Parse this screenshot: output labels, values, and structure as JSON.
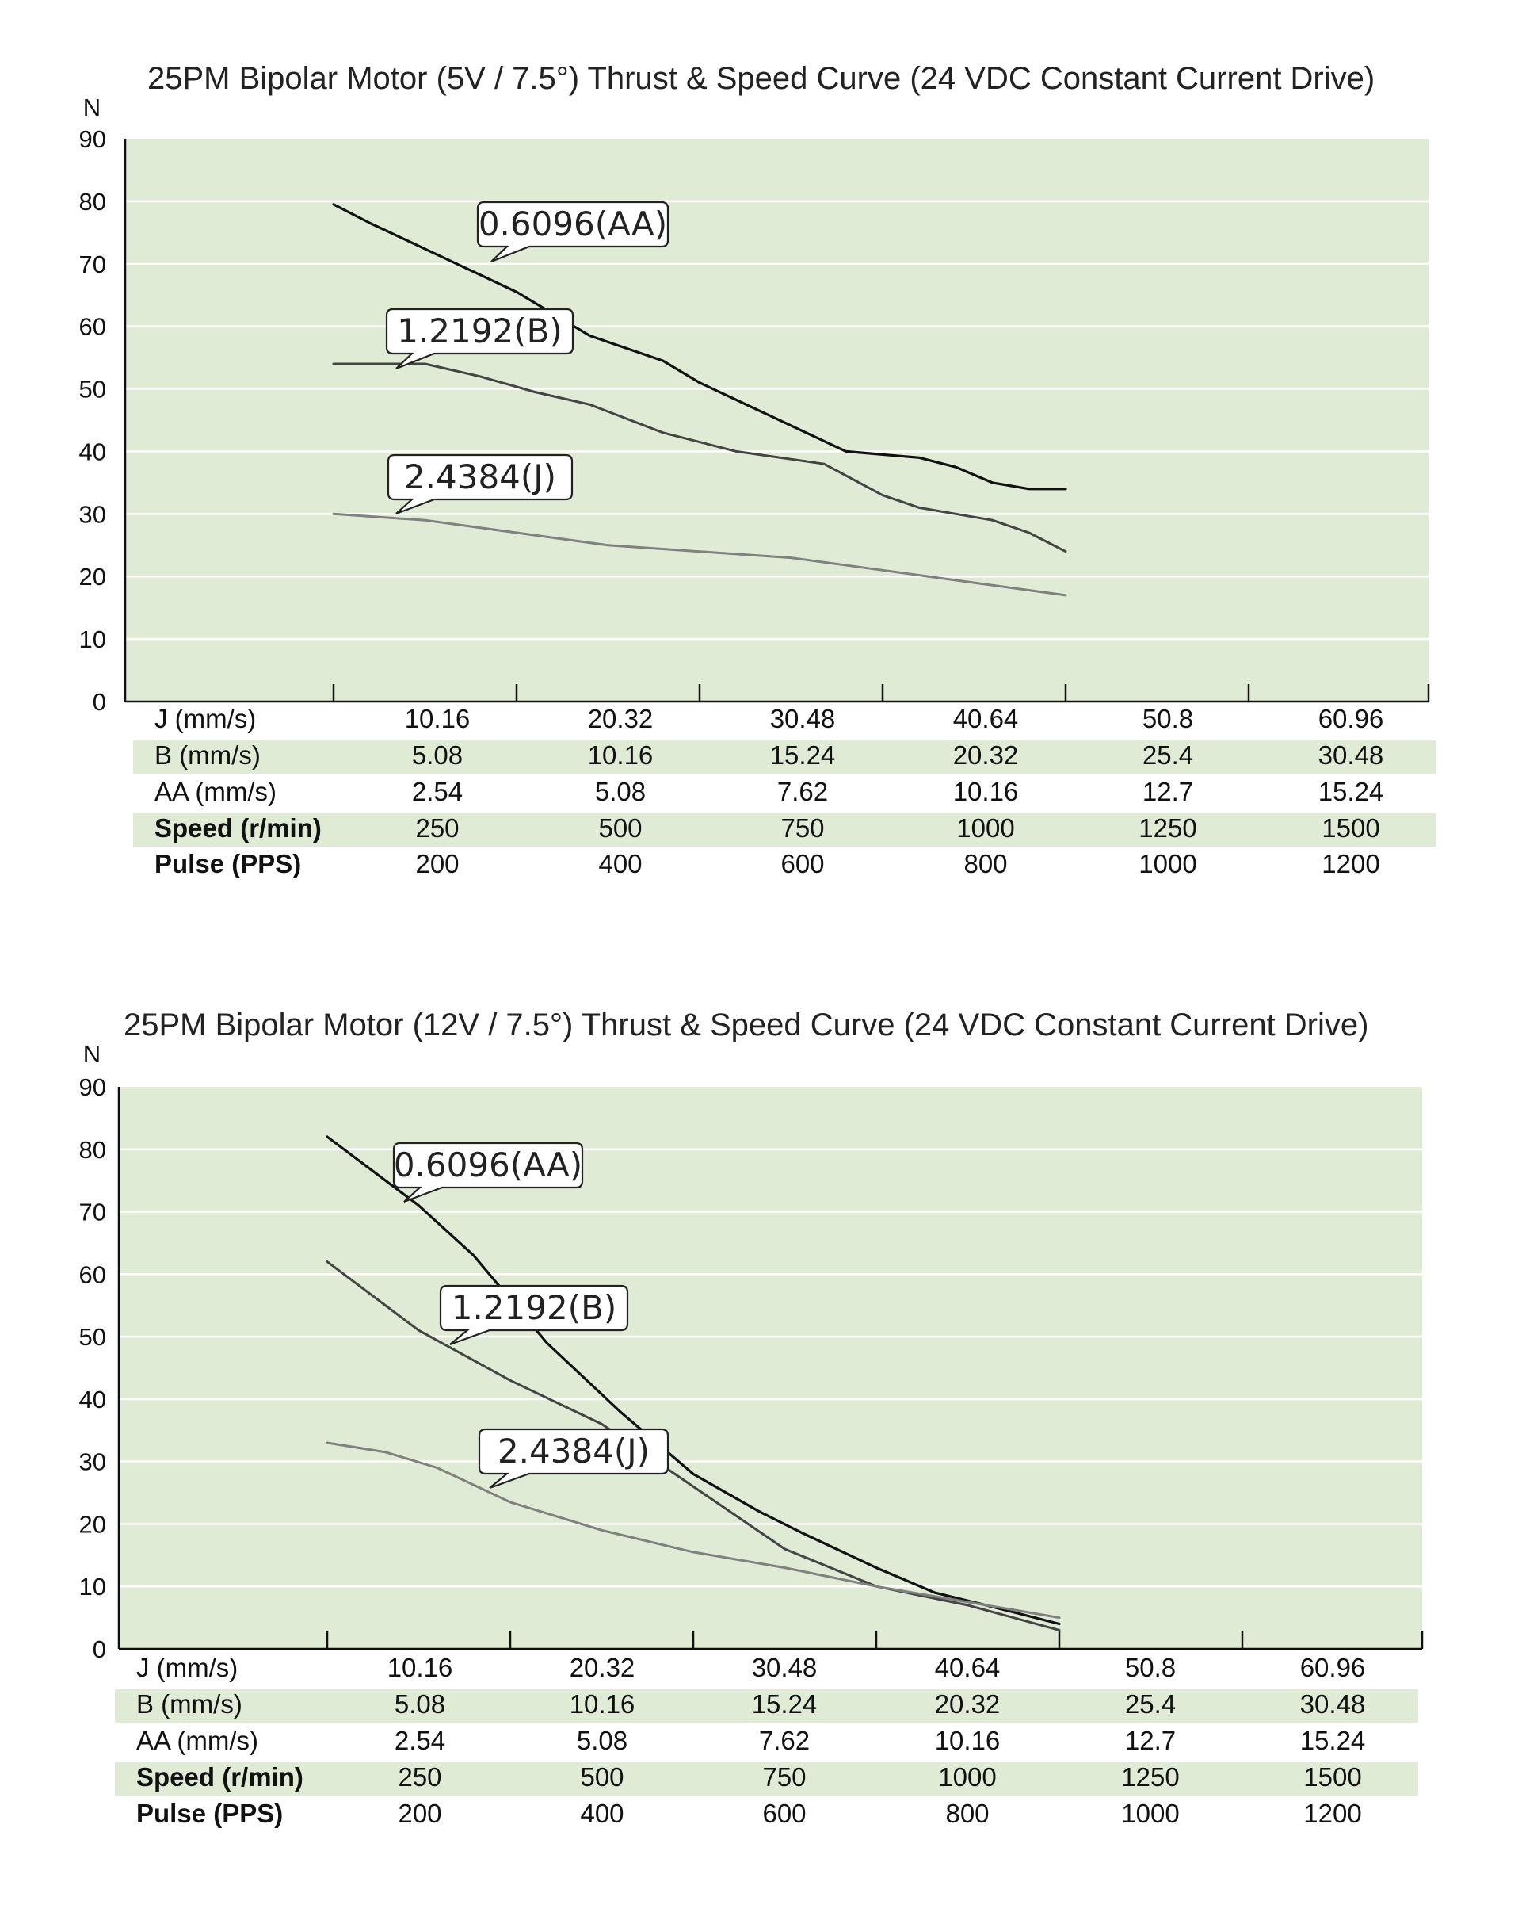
{
  "colors": {
    "plot_bg": "#e0ebd5",
    "band_bg": "#e0ebd5",
    "gridline": "#ffffff",
    "series_AA": "#111111",
    "series_B": "#444444",
    "series_J": "#808080"
  },
  "chart_data": [
    {
      "type": "line",
      "title": "25PM Bipolar Motor (5V / 7.5°) Thrust & Speed Curve (24 VDC Constant Current Drive)",
      "ylabel": "N",
      "ylim": [
        0,
        90
      ],
      "yticks": [
        "90",
        "80",
        "70",
        "60",
        "50",
        "40",
        "30",
        "20",
        "10",
        "0"
      ],
      "x_axis": "Speed (r/min)",
      "xlim": [
        0,
        1500
      ],
      "grid": true,
      "table": [
        {
          "label": "J (mm/s)",
          "values": [
            "10.16",
            "20.32",
            "30.48",
            "40.64",
            "50.8",
            "60.96"
          ],
          "bold": false,
          "shaded": false
        },
        {
          "label": "B (mm/s)",
          "values": [
            "5.08",
            "10.16",
            "15.24",
            "20.32",
            "25.4",
            "30.48"
          ],
          "bold": false,
          "shaded": true
        },
        {
          "label": "AA (mm/s)",
          "values": [
            "2.54",
            "5.08",
            "7.62",
            "10.16",
            "12.7",
            "15.24"
          ],
          "bold": false,
          "shaded": false
        },
        {
          "label": "Speed (r/min)",
          "values": [
            "250",
            "500",
            "750",
            "1000",
            "1250",
            "1500"
          ],
          "bold": true,
          "shaded": true
        },
        {
          "label": "Pulse (PPS)",
          "values": [
            "200",
            "400",
            "600",
            "800",
            "1000",
            "1200"
          ],
          "bold": true,
          "shaded": false
        }
      ],
      "series": [
        {
          "name": "0.6096(AA)",
          "key": "AA",
          "x": [
            250,
            300,
            400,
            500,
            600,
            700,
            750,
            850,
            950,
            1000,
            1050,
            1100,
            1150,
            1200,
            1250
          ],
          "y": [
            79.5,
            76.5,
            71,
            65.5,
            58.5,
            54.5,
            51,
            45.5,
            40,
            39.5,
            39,
            37.5,
            35,
            34,
            34
          ]
        },
        {
          "name": "1.2192(B)",
          "key": "B",
          "x": [
            250,
            300,
            375,
            450,
            525,
            600,
            700,
            800,
            920,
            1000,
            1050,
            1100,
            1150,
            1200,
            1250
          ],
          "y": [
            54,
            54,
            54,
            52,
            49.5,
            47.5,
            43,
            40,
            38,
            33,
            31,
            30,
            29,
            27,
            24
          ]
        },
        {
          "name": "2.4384(J)",
          "key": "J",
          "x": [
            250,
            375,
            500,
            625,
            750,
            875,
            1000,
            1125,
            1250
          ],
          "y": [
            30,
            29,
            27,
            25,
            24,
            23,
            21,
            19,
            17
          ]
        }
      ],
      "callouts": [
        {
          "text": "0.6096(AA)",
          "series": "AA"
        },
        {
          "text": "1.2192(B)",
          "series": "B"
        },
        {
          "text": "2.4384(J)",
          "series": "J"
        }
      ]
    },
    {
      "type": "line",
      "title": "25PM Bipolar Motor (12V / 7.5°) Thrust & Speed Curve (24 VDC Constant Current Drive)",
      "ylabel": "N",
      "ylim": [
        0,
        90
      ],
      "yticks": [
        "90",
        "80",
        "70",
        "60",
        "50",
        "40",
        "30",
        "20",
        "10",
        "0"
      ],
      "x_axis": "Speed (r/min)",
      "xlim": [
        0,
        1500
      ],
      "grid": true,
      "table": [
        {
          "label": "J (mm/s)",
          "values": [
            "10.16",
            "20.32",
            "30.48",
            "40.64",
            "50.8",
            "60.96"
          ],
          "bold": false,
          "shaded": false
        },
        {
          "label": "B (mm/s)",
          "values": [
            "5.08",
            "10.16",
            "15.24",
            "20.32",
            "25.4",
            "30.48"
          ],
          "bold": false,
          "shaded": true
        },
        {
          "label": "AA (mm/s)",
          "values": [
            "2.54",
            "5.08",
            "7.62",
            "10.16",
            "12.7",
            "15.24"
          ],
          "bold": false,
          "shaded": false
        },
        {
          "label": "Speed (r/min)",
          "values": [
            "250",
            "500",
            "750",
            "1000",
            "1250",
            "1500"
          ],
          "bold": true,
          "shaded": true
        },
        {
          "label": "Pulse (PPS)",
          "values": [
            "200",
            "400",
            "600",
            "800",
            "1000",
            "1200"
          ],
          "bold": true,
          "shaded": false
        }
      ],
      "series": [
        {
          "name": "0.6096(AA)",
          "key": "AA",
          "x": [
            250,
            375,
            450,
            550,
            650,
            750,
            840,
            900,
            1000,
            1080,
            1150,
            1250
          ],
          "y": [
            82,
            71,
            63,
            49,
            38,
            28,
            22,
            18.5,
            13,
            9,
            7,
            4
          ]
        },
        {
          "name": "1.2192(B)",
          "key": "B",
          "x": [
            250,
            375,
            500,
            625,
            750,
            875,
            1000,
            1125,
            1250
          ],
          "y": [
            62,
            51,
            43,
            36,
            26,
            16,
            10,
            7,
            3
          ]
        },
        {
          "name": "2.4384(J)",
          "key": "J",
          "x": [
            250,
            330,
            400,
            500,
            625,
            750,
            875,
            1000,
            1125,
            1250
          ],
          "y": [
            33,
            31.5,
            29,
            23.5,
            19,
            15.5,
            13,
            10,
            7.5,
            5
          ]
        }
      ],
      "callouts": [
        {
          "text": "0.6096(AA)",
          "series": "AA"
        },
        {
          "text": "1.2192(B)",
          "series": "B"
        },
        {
          "text": "2.4384(J)",
          "series": "J"
        }
      ]
    }
  ]
}
